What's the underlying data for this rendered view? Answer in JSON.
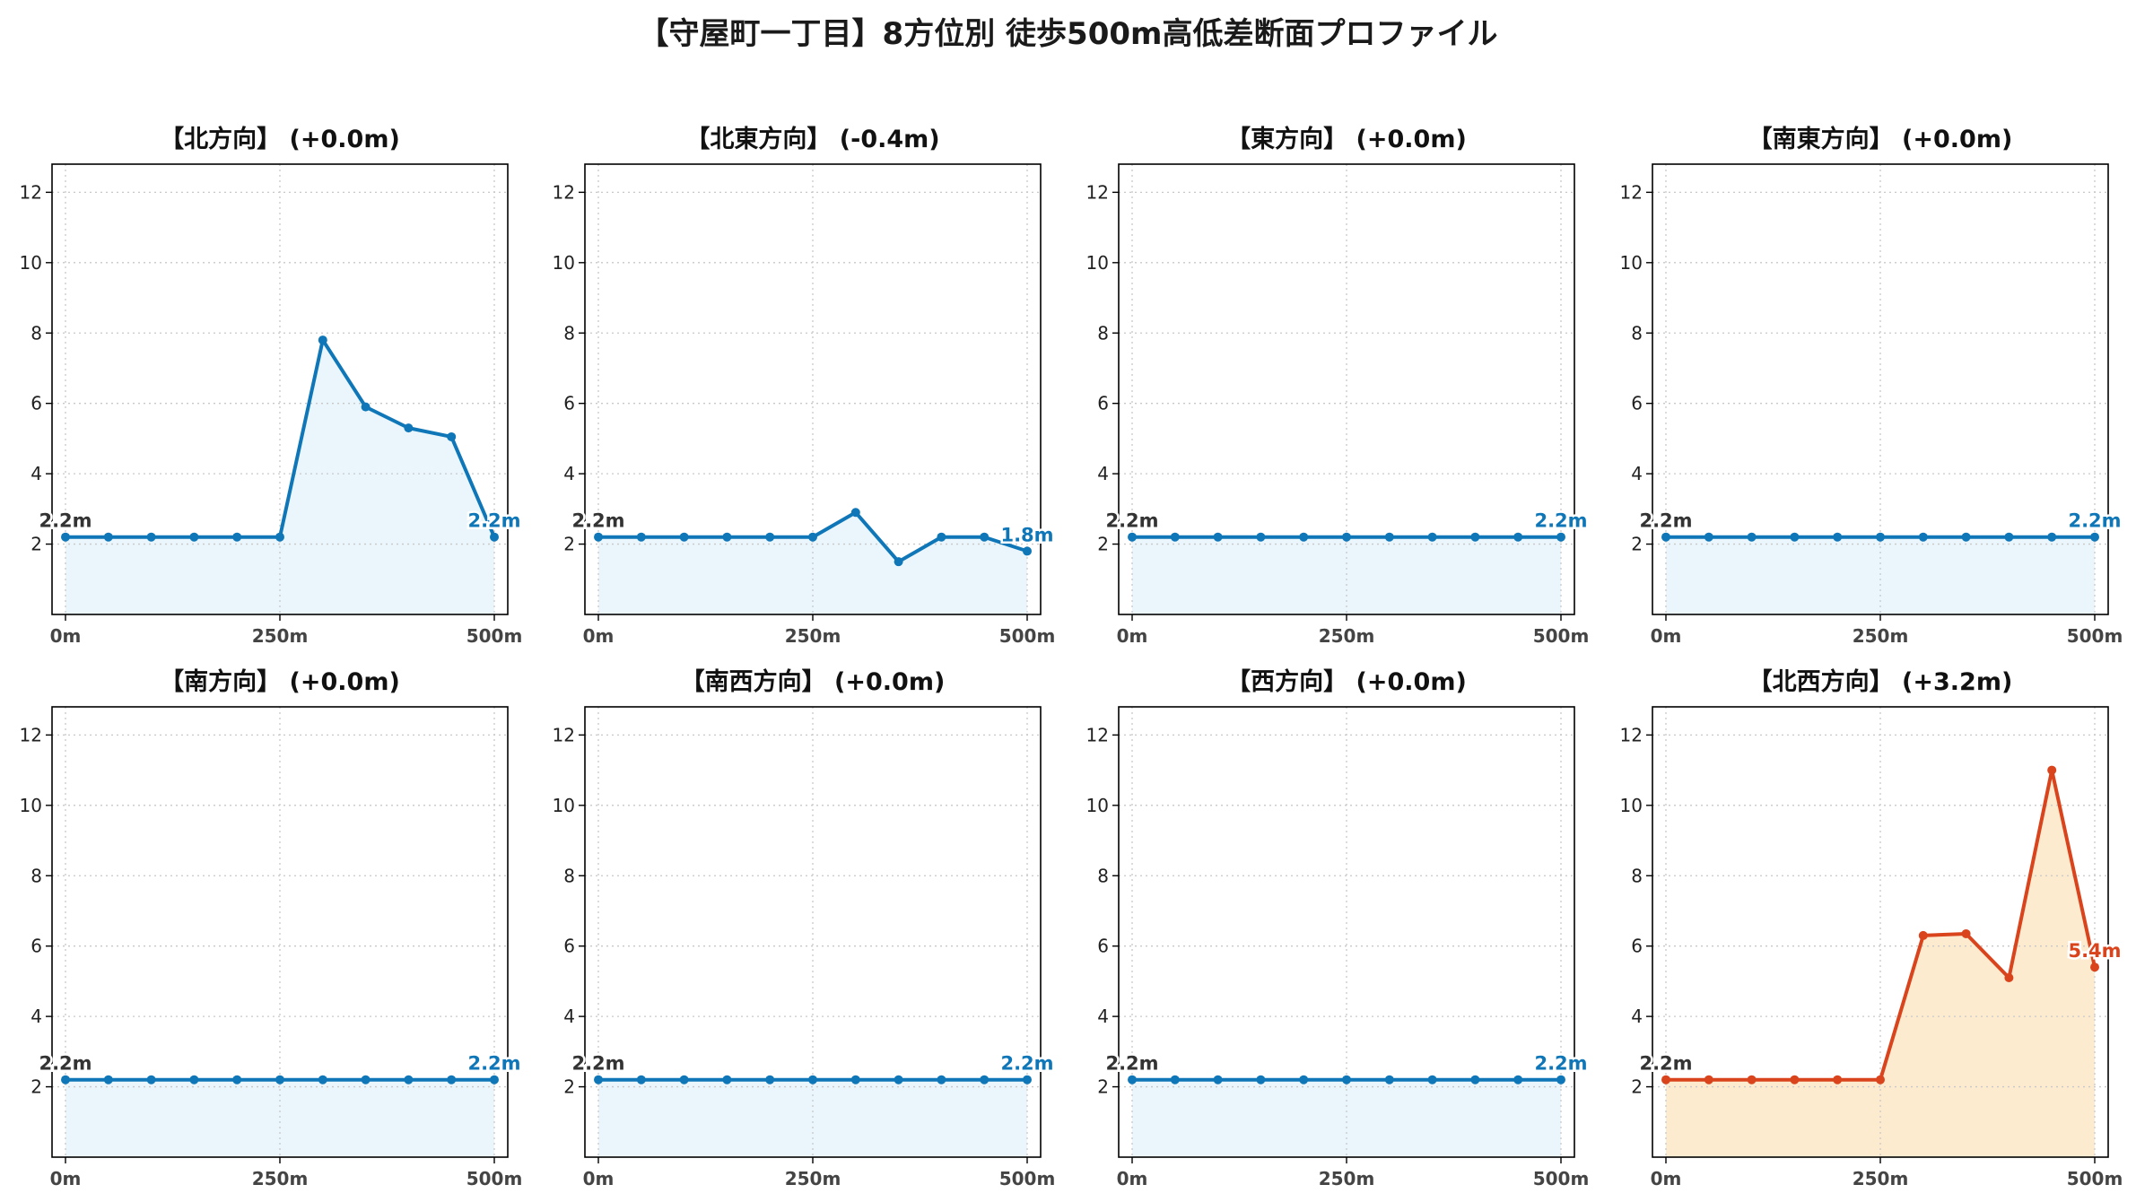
{
  "title": "【守屋町一丁目】8方位別 徒歩500m高低差断面プロファイル",
  "colors": {
    "normal_line": "#0f77b8",
    "normal_fill": "#eaf6fb",
    "highlight_line": "#d9441d",
    "highlight_fill": "#fdebd0",
    "grid": "#c8c8c8",
    "start_label": "#333333"
  },
  "chart_data": [
    {
      "type": "area",
      "title": "【北方向】 (+0.0m)",
      "x": [
        0,
        50,
        100,
        150,
        200,
        250,
        300,
        350,
        400,
        450,
        500
      ],
      "values": [
        2.2,
        2.2,
        2.2,
        2.2,
        2.2,
        2.2,
        7.8,
        5.9,
        5.3,
        5.05,
        2.2
      ],
      "xlim": [
        0,
        500
      ],
      "ylim": [
        0,
        12.8
      ],
      "x_ticks": [
        "0m",
        "250m",
        "500m"
      ],
      "y_ticks": [
        "2",
        "4",
        "6",
        "8",
        "10",
        "12"
      ],
      "start_label": "2.2m",
      "end_label": "2.2m",
      "highlight": false,
      "grid": true
    },
    {
      "type": "area",
      "title": "【北東方向】 (-0.4m)",
      "x": [
        0,
        50,
        100,
        150,
        200,
        250,
        300,
        350,
        400,
        450,
        500
      ],
      "values": [
        2.2,
        2.2,
        2.2,
        2.2,
        2.2,
        2.2,
        2.9,
        1.5,
        2.2,
        2.2,
        1.8
      ],
      "xlim": [
        0,
        500
      ],
      "ylim": [
        0,
        12.8
      ],
      "x_ticks": [
        "0m",
        "250m",
        "500m"
      ],
      "y_ticks": [
        "2",
        "4",
        "6",
        "8",
        "10",
        "12"
      ],
      "start_label": "2.2m",
      "end_label": "1.8m",
      "highlight": false,
      "grid": true
    },
    {
      "type": "area",
      "title": "【東方向】 (+0.0m)",
      "x": [
        0,
        50,
        100,
        150,
        200,
        250,
        300,
        350,
        400,
        450,
        500
      ],
      "values": [
        2.2,
        2.2,
        2.2,
        2.2,
        2.2,
        2.2,
        2.2,
        2.2,
        2.2,
        2.2,
        2.2
      ],
      "xlim": [
        0,
        500
      ],
      "ylim": [
        0,
        12.8
      ],
      "x_ticks": [
        "0m",
        "250m",
        "500m"
      ],
      "y_ticks": [
        "2",
        "4",
        "6",
        "8",
        "10",
        "12"
      ],
      "start_label": "2.2m",
      "end_label": "2.2m",
      "highlight": false,
      "grid": true
    },
    {
      "type": "area",
      "title": "【南東方向】 (+0.0m)",
      "x": [
        0,
        50,
        100,
        150,
        200,
        250,
        300,
        350,
        400,
        450,
        500
      ],
      "values": [
        2.2,
        2.2,
        2.2,
        2.2,
        2.2,
        2.2,
        2.2,
        2.2,
        2.2,
        2.2,
        2.2
      ],
      "xlim": [
        0,
        500
      ],
      "ylim": [
        0,
        12.8
      ],
      "x_ticks": [
        "0m",
        "250m",
        "500m"
      ],
      "y_ticks": [
        "2",
        "4",
        "6",
        "8",
        "10",
        "12"
      ],
      "start_label": "2.2m",
      "end_label": "2.2m",
      "highlight": false,
      "grid": true
    },
    {
      "type": "area",
      "title": "【南方向】 (+0.0m)",
      "x": [
        0,
        50,
        100,
        150,
        200,
        250,
        300,
        350,
        400,
        450,
        500
      ],
      "values": [
        2.2,
        2.2,
        2.2,
        2.2,
        2.2,
        2.2,
        2.2,
        2.2,
        2.2,
        2.2,
        2.2
      ],
      "xlim": [
        0,
        500
      ],
      "ylim": [
        0,
        12.8
      ],
      "x_ticks": [
        "0m",
        "250m",
        "500m"
      ],
      "y_ticks": [
        "2",
        "4",
        "6",
        "8",
        "10",
        "12"
      ],
      "start_label": "2.2m",
      "end_label": "2.2m",
      "highlight": false,
      "grid": true
    },
    {
      "type": "area",
      "title": "【南西方向】 (+0.0m)",
      "x": [
        0,
        50,
        100,
        150,
        200,
        250,
        300,
        350,
        400,
        450,
        500
      ],
      "values": [
        2.2,
        2.2,
        2.2,
        2.2,
        2.2,
        2.2,
        2.2,
        2.2,
        2.2,
        2.2,
        2.2
      ],
      "xlim": [
        0,
        500
      ],
      "ylim": [
        0,
        12.8
      ],
      "x_ticks": [
        "0m",
        "250m",
        "500m"
      ],
      "y_ticks": [
        "2",
        "4",
        "6",
        "8",
        "10",
        "12"
      ],
      "start_label": "2.2m",
      "end_label": "2.2m",
      "highlight": false,
      "grid": true
    },
    {
      "type": "area",
      "title": "【西方向】 (+0.0m)",
      "x": [
        0,
        50,
        100,
        150,
        200,
        250,
        300,
        350,
        400,
        450,
        500
      ],
      "values": [
        2.2,
        2.2,
        2.2,
        2.2,
        2.2,
        2.2,
        2.2,
        2.2,
        2.2,
        2.2,
        2.2
      ],
      "xlim": [
        0,
        500
      ],
      "ylim": [
        0,
        12.8
      ],
      "x_ticks": [
        "0m",
        "250m",
        "500m"
      ],
      "y_ticks": [
        "2",
        "4",
        "6",
        "8",
        "10",
        "12"
      ],
      "start_label": "2.2m",
      "end_label": "2.2m",
      "highlight": false,
      "grid": true
    },
    {
      "type": "area",
      "title": "【北西方向】 (+3.2m)",
      "x": [
        0,
        50,
        100,
        150,
        200,
        250,
        300,
        350,
        400,
        450,
        500
      ],
      "values": [
        2.2,
        2.2,
        2.2,
        2.2,
        2.2,
        2.2,
        6.3,
        6.35,
        5.1,
        11.0,
        5.4
      ],
      "xlim": [
        0,
        500
      ],
      "ylim": [
        0,
        12.8
      ],
      "x_ticks": [
        "0m",
        "250m",
        "500m"
      ],
      "y_ticks": [
        "2",
        "4",
        "6",
        "8",
        "10",
        "12"
      ],
      "start_label": "2.2m",
      "end_label": "5.4m",
      "highlight": true,
      "grid": true
    }
  ]
}
